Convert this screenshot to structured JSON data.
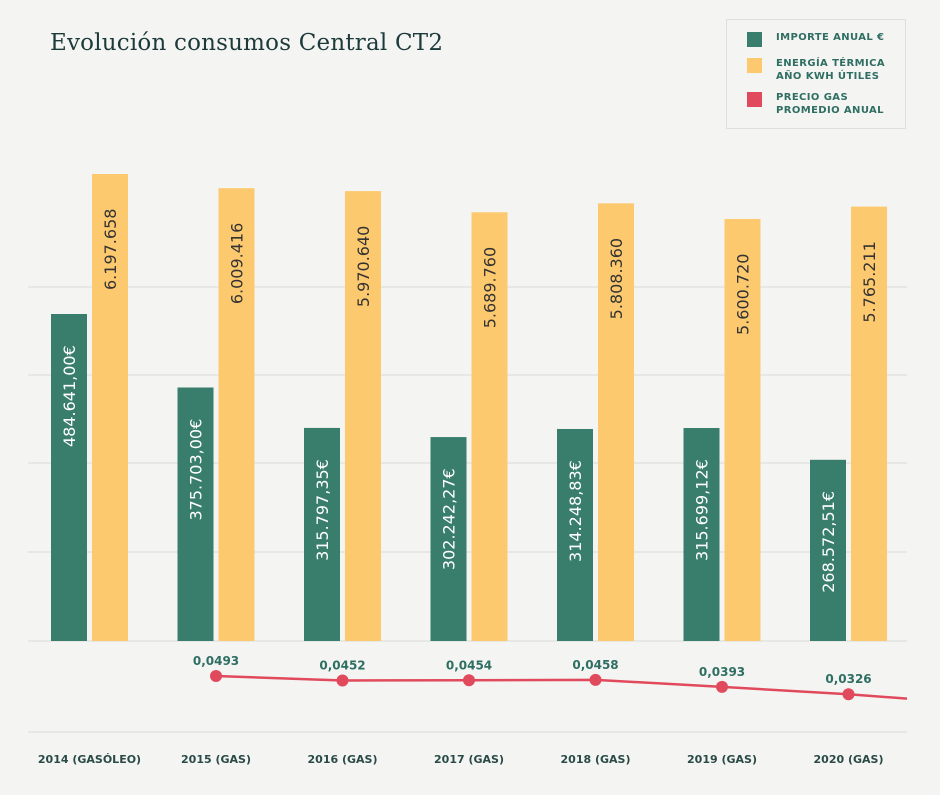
{
  "chart_data": {
    "type": "bar",
    "title": "Evolución consumos Central CT2",
    "categories": [
      "2014 (GASÓLEO)",
      "2015 (GAS)",
      "2016 (GAS)",
      "2017 (GAS)",
      "2018 (GAS)",
      "2019 (GAS)",
      "2020 (GAS)"
    ],
    "series": [
      {
        "name": "IMPORTE ANUAL €",
        "color": "#397e6d",
        "values": [
          484641.0,
          375703.0,
          315797.35,
          302242.27,
          314248.83,
          315699.12,
          268572.51
        ],
        "labels": [
          "484.641,00€",
          "375.703,00€",
          "315.797,35€",
          "302.242,27€",
          "314.248,83€",
          "315.699,12€",
          "268.572,51€"
        ]
      },
      {
        "name": "ENERGÍA TÉRMICA AÑO KWH ÚTILES",
        "color": "#fdc96f",
        "values": [
          6197658,
          6009416,
          5970640,
          5689760,
          5808360,
          5600720,
          5765211
        ],
        "labels": [
          "6.197.658",
          "6.009.416",
          "5.970.640",
          "5.689.760",
          "5.808.360",
          "5.600.720",
          "5.765.211"
        ]
      },
      {
        "name": "PRECIO GAS PROMEDIO ANUAL",
        "type": "line",
        "color": "#e14a5c",
        "values": [
          null,
          0.0493,
          0.0452,
          0.0454,
          0.0458,
          0.0393,
          0.0326
        ],
        "labels": [
          "",
          "0,0493",
          "0,0452",
          "0,0454",
          "0,0458",
          "0,0393",
          "0,0326"
        ]
      }
    ],
    "legend_position": "top-right",
    "grid": true
  }
}
